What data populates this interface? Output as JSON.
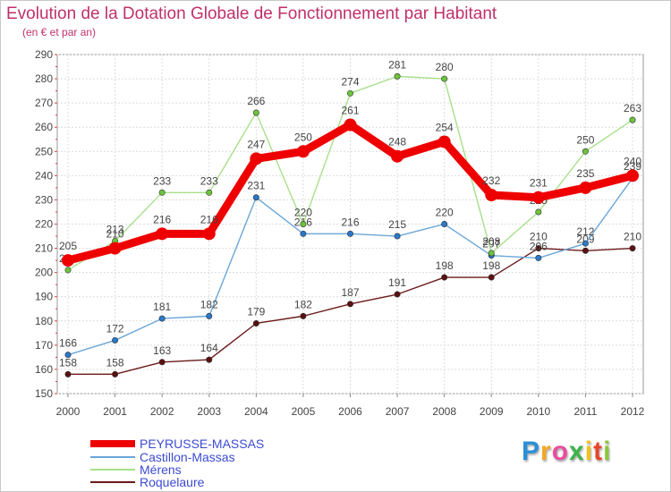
{
  "title": "Evolution de la Dotation Globale de Fonctionnement par Habitant",
  "subtitle": "(en € et par an)",
  "logo": {
    "letters": [
      "P",
      "r",
      "o",
      "x",
      "i",
      "t",
      "i"
    ]
  },
  "chart_data": {
    "type": "line",
    "title": "Evolution de la Dotation Globale de Fonctionnement par Habitant",
    "subtitle": "(en € et par an)",
    "xlabel": "",
    "ylabel": "",
    "ylim": [
      150,
      290
    ],
    "ytick_step": 10,
    "grid": true,
    "legend_position": "bottom-left",
    "categories": [
      "2000",
      "2001",
      "2002",
      "2003",
      "2004",
      "2005",
      "2006",
      "2007",
      "2008",
      "2009",
      "2010",
      "2011",
      "2012"
    ],
    "series": [
      {
        "name": "Roquelaure",
        "color": "#6b1a1a",
        "marker": "#5a1010",
        "values": [
          158,
          158,
          163,
          164,
          179,
          182,
          187,
          191,
          198,
          198,
          210,
          209,
          210
        ]
      },
      {
        "name": "Castillon-Massas",
        "color": "#6aa6d8",
        "marker": "#2a78c8",
        "values": [
          166,
          172,
          181,
          182,
          231,
          216,
          216,
          215,
          220,
          207,
          206,
          212,
          239
        ]
      },
      {
        "name": "Mérens",
        "color": "#a8e08a",
        "marker": "#6cc43c",
        "values": [
          201,
          213,
          233,
          233,
          266,
          220,
          274,
          281,
          280,
          208,
          225,
          250,
          263
        ]
      },
      {
        "name": "PEYRUSSE-MASSAS",
        "color": "#ee0000",
        "marker": "#ee0000",
        "values": [
          205,
          210,
          216,
          216,
          247,
          250,
          261,
          248,
          254,
          232,
          231,
          235,
          240
        ]
      }
    ],
    "legend": [
      "PEYRUSSE-MASSAS",
      "Castillon-Massas",
      "Mérens",
      "Roquelaure"
    ]
  }
}
